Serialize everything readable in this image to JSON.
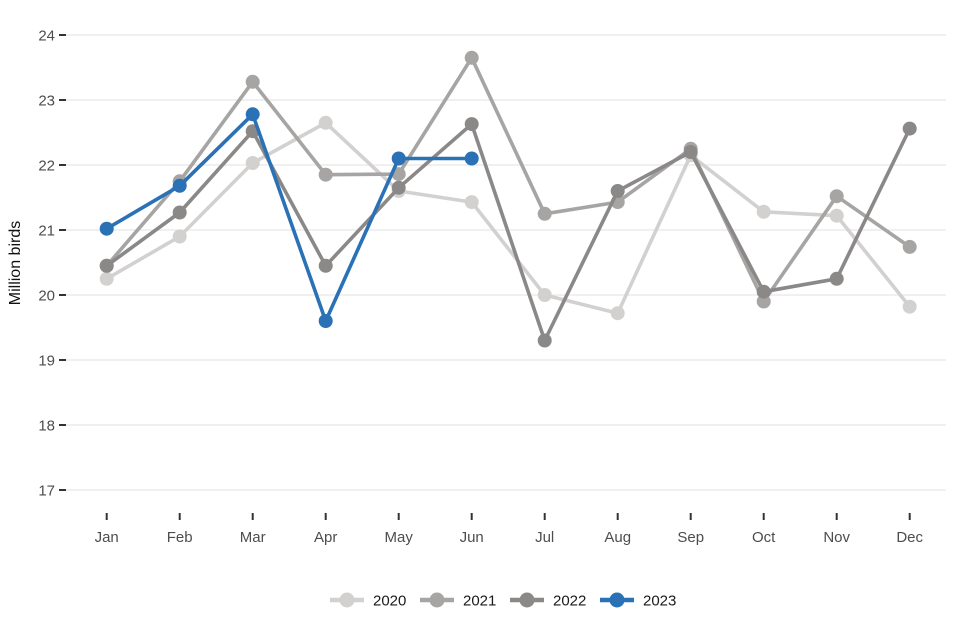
{
  "chart_data": {
    "type": "line",
    "title": "",
    "xlabel": "",
    "ylabel": "Million birds",
    "categories": [
      "Jan",
      "Feb",
      "Mar",
      "Apr",
      "May",
      "Jun",
      "Jul",
      "Aug",
      "Sep",
      "Oct",
      "Nov",
      "Dec"
    ],
    "yticks": [
      17,
      18,
      19,
      20,
      21,
      22,
      23,
      24
    ],
    "ylim": [
      17,
      24
    ],
    "grid": "horizontal-major-only",
    "legend_position": "bottom-center",
    "marker": "filled-circle",
    "series": [
      {
        "name": "2020",
        "color": "#d3d0d0",
        "values": [
          20.25,
          20.9,
          22.03,
          22.65,
          21.6,
          21.43,
          20.0,
          19.72,
          22.15,
          21.28,
          21.22,
          19.82
        ]
      },
      {
        "name": "2021",
        "color": "#a7a4a4",
        "values": [
          20.45,
          21.75,
          23.28,
          21.85,
          21.86,
          23.65,
          21.25,
          21.43,
          22.25,
          19.9,
          21.52,
          20.74
        ]
      },
      {
        "name": "2022",
        "color": "#8b8888",
        "values": [
          20.45,
          21.27,
          22.52,
          20.45,
          21.65,
          22.63,
          19.3,
          21.6,
          22.2,
          20.05,
          20.25,
          22.56
        ]
      },
      {
        "name": "2023",
        "color": "#2a71b5",
        "values": [
          21.02,
          21.68,
          22.78,
          19.6,
          22.1,
          22.1,
          null,
          null,
          null,
          null,
          null,
          null
        ]
      }
    ]
  },
  "colors": {
    "background": "#ffffff",
    "gridline": "#ebebeb",
    "tick": "#333333",
    "axis_text": "#4d4d4d",
    "legend_text": "#1a1a1a"
  }
}
